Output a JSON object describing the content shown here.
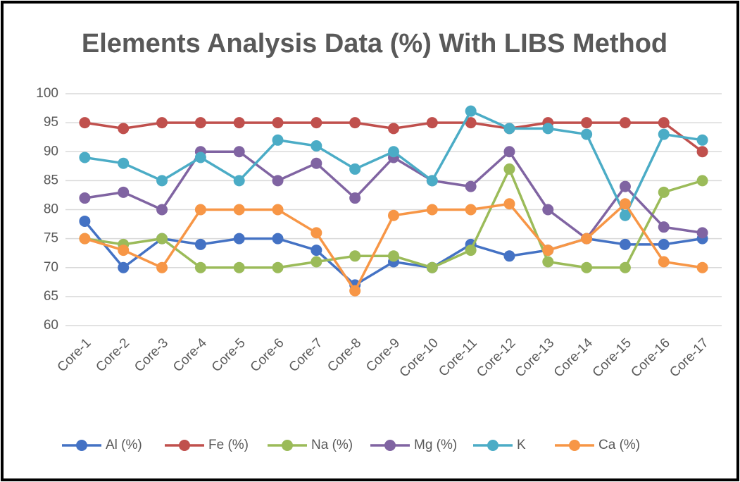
{
  "chart_data": {
    "type": "line",
    "title": "Elements Analysis Data (%) With LIBS Method",
    "categories": [
      "Core-1",
      "Core-2",
      "Core-3",
      "Core-4",
      "Core-5",
      "Core-6",
      "Core-7",
      "Core-8",
      "Core-9",
      "Core-10",
      "Core-11",
      "Core-12",
      "Core-13",
      "Core-14",
      "Core-15",
      "Core-16",
      "Core-17"
    ],
    "series": [
      {
        "name": "Al (%)",
        "color": "#4472c4",
        "values": [
          78,
          70,
          75,
          74,
          75,
          75,
          73,
          67,
          71,
          70,
          74,
          72,
          73,
          75,
          74,
          74,
          75
        ]
      },
      {
        "name": "Fe (%)",
        "color": "#c0504d",
        "values": [
          95,
          94,
          95,
          95,
          95,
          95,
          95,
          95,
          94,
          95,
          95,
          94,
          95,
          95,
          95,
          95,
          90
        ]
      },
      {
        "name": "Na (%)",
        "color": "#9bbb59",
        "values": [
          75,
          74,
          75,
          70,
          70,
          70,
          71,
          72,
          72,
          70,
          73,
          87,
          71,
          70,
          70,
          83,
          85
        ]
      },
      {
        "name": "Mg (%)",
        "color": "#8064a2",
        "values": [
          82,
          83,
          80,
          90,
          90,
          85,
          88,
          82,
          89,
          85,
          84,
          90,
          80,
          75,
          84,
          77,
          76
        ]
      },
      {
        "name": "K",
        "color": "#4bacc6",
        "values": [
          89,
          88,
          85,
          89,
          85,
          92,
          91,
          87,
          90,
          85,
          97,
          94,
          94,
          93,
          79,
          93,
          92
        ]
      },
      {
        "name": "Ca (%)",
        "color": "#f79646",
        "values": [
          75,
          73,
          70,
          80,
          80,
          80,
          76,
          66,
          79,
          80,
          80,
          81,
          73,
          75,
          81,
          71,
          70
        ]
      }
    ],
    "ylim": [
      60,
      100
    ],
    "yticks": [
      60,
      65,
      70,
      75,
      80,
      85,
      90,
      95,
      100
    ],
    "grid": true,
    "legend": "bottom"
  }
}
